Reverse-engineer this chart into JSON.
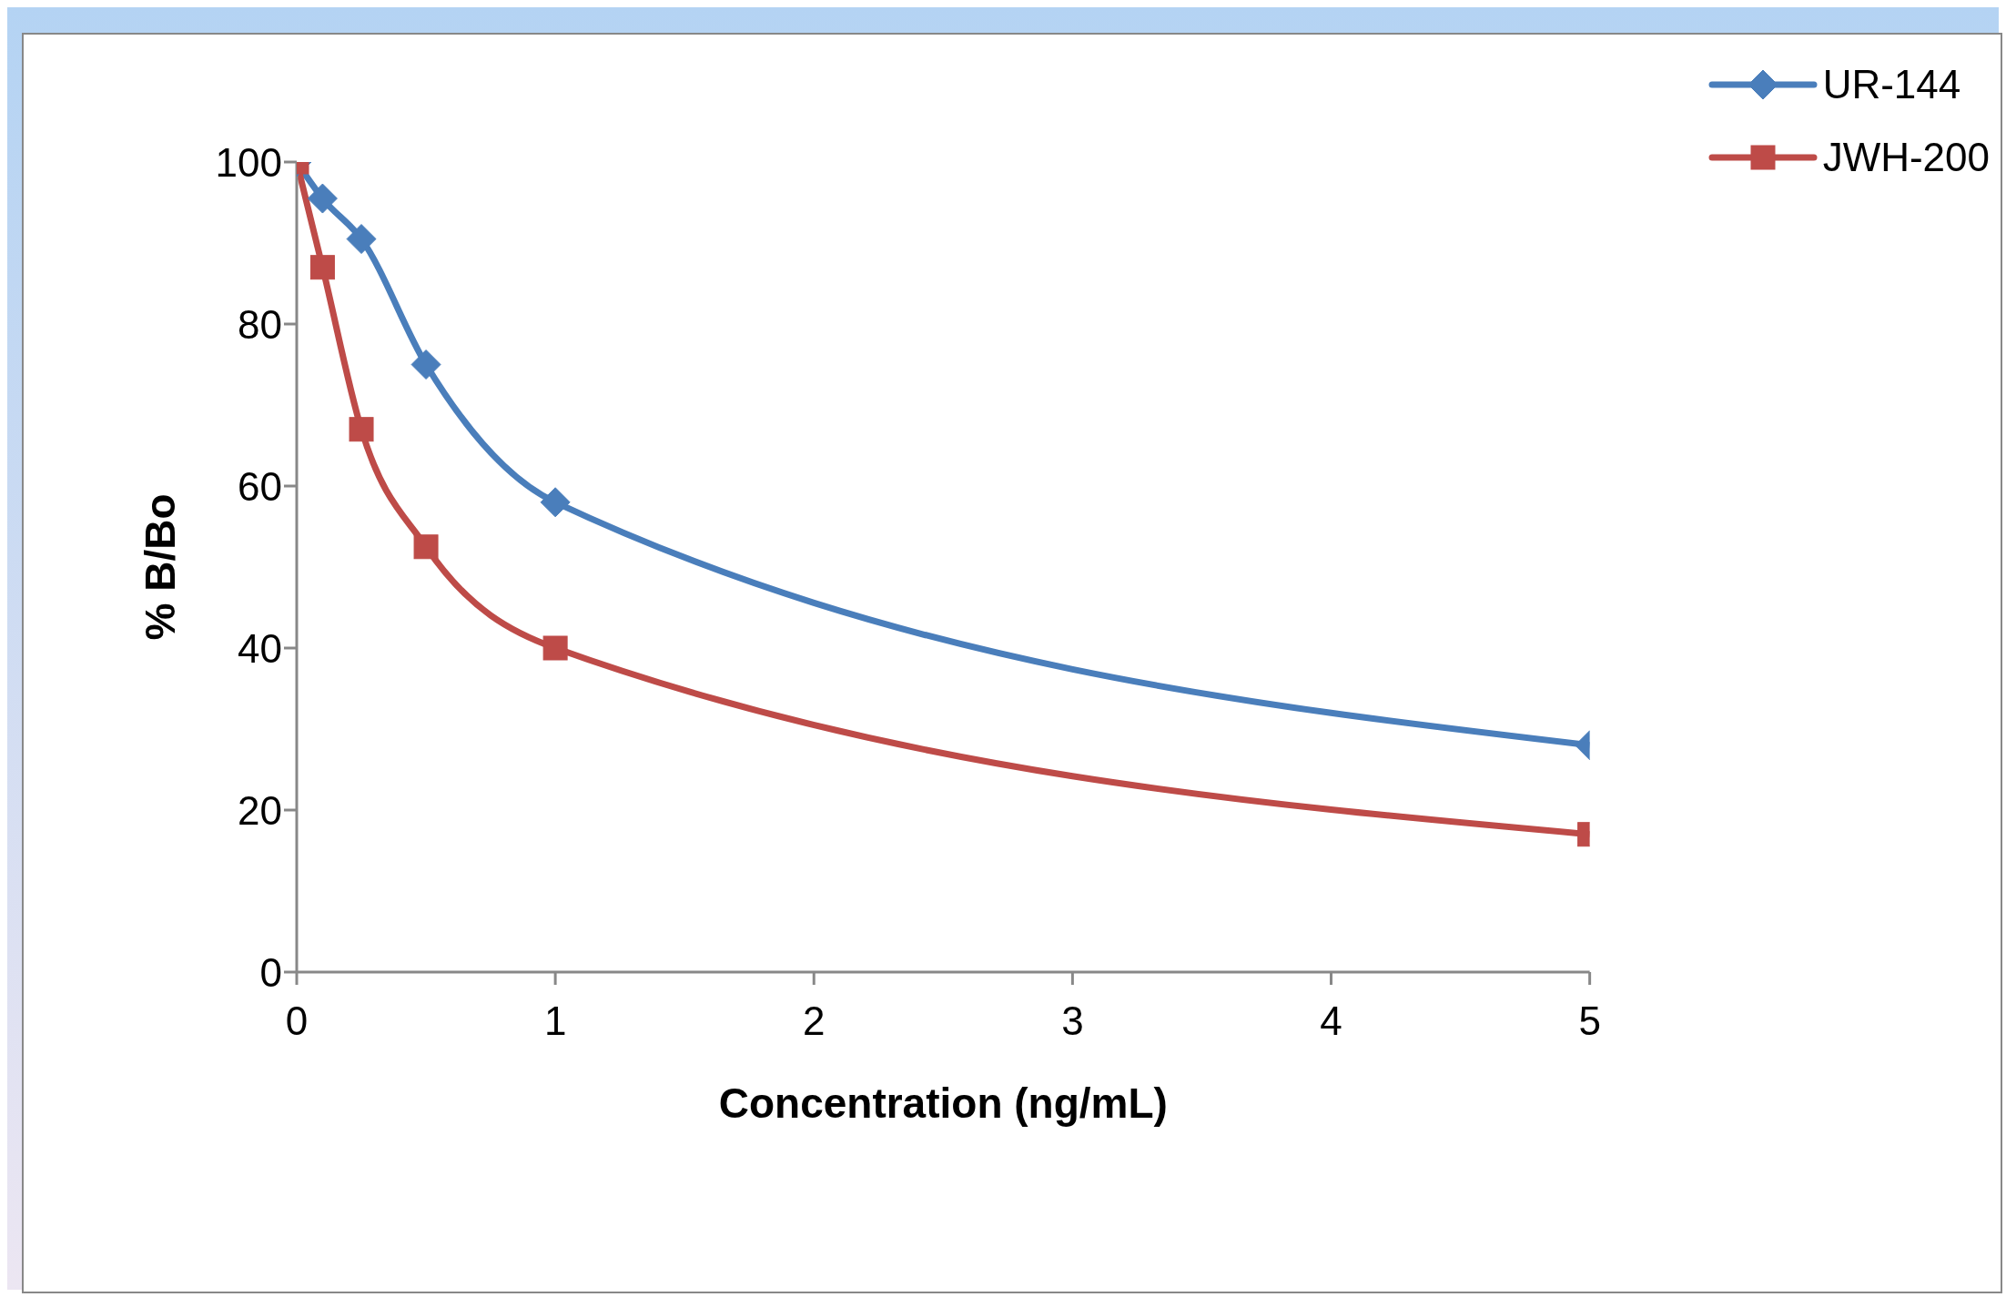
{
  "chart_data": {
    "type": "line",
    "xlabel": "Concentration (ng/mL)",
    "ylabel": "% B/Bo",
    "x": [
      0,
      0.1,
      0.25,
      0.5,
      1,
      5
    ],
    "series": [
      {
        "name": "UR-144",
        "color": "#4a7ebb",
        "values": [
          100,
          95.5,
          90.5,
          75,
          58,
          28
        ],
        "marker": "diamond"
      },
      {
        "name": "JWH-200",
        "color": "#be4b48",
        "values": [
          100,
          87,
          67,
          52.5,
          40,
          17
        ],
        "marker": "square"
      }
    ],
    "xlim": [
      0,
      5
    ],
    "xticks": [
      0,
      1,
      2,
      3,
      4,
      5
    ],
    "ylim": [
      0,
      100
    ],
    "yticks": [
      0,
      20,
      40,
      60,
      80,
      100
    ],
    "grid": false,
    "legend": "top right",
    "line_style": "solid"
  }
}
